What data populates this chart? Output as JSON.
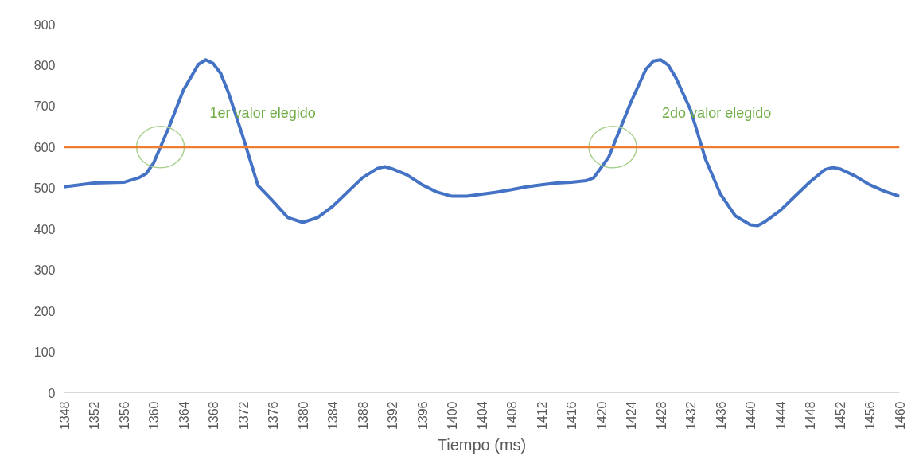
{
  "chart_data": {
    "type": "line",
    "xlabel": "Tiempo (ms)",
    "x": [
      1348,
      1352,
      1356,
      1358,
      1359,
      1360,
      1362,
      1364,
      1366,
      1367,
      1368,
      1369,
      1370,
      1372,
      1374,
      1376,
      1378,
      1380,
      1382,
      1384,
      1386,
      1388,
      1390,
      1391,
      1392,
      1394,
      1396,
      1398,
      1400,
      1402,
      1404,
      1406,
      1408,
      1410,
      1412,
      1414,
      1416,
      1418,
      1419,
      1420,
      1421,
      1422,
      1424,
      1426,
      1427,
      1428,
      1429,
      1430,
      1432,
      1434,
      1436,
      1438,
      1440,
      1441,
      1442,
      1444,
      1446,
      1448,
      1450,
      1451,
      1452,
      1454,
      1456,
      1458,
      1460
    ],
    "series": [
      {
        "color": "#4472c4",
        "values": [
          503,
          512,
          514,
          525,
          535,
          561,
          646,
          739,
          802,
          813,
          804,
          780,
          735,
          624,
          506,
          468,
          428,
          416,
          428,
          455,
          490,
          525,
          548,
          552,
          547,
          532,
          508,
          490,
          480,
          480,
          485,
          490,
          496,
          503,
          508,
          512,
          514,
          518,
          525,
          550,
          575,
          620,
          710,
          790,
          810,
          813,
          800,
          770,
          690,
          570,
          485,
          432,
          410,
          408,
          418,
          445,
          480,
          515,
          545,
          550,
          547,
          530,
          508,
          492,
          480
        ]
      }
    ],
    "xlim": [
      1348,
      1460
    ],
    "xticks": [
      1348,
      1352,
      1356,
      1360,
      1364,
      1368,
      1372,
      1376,
      1380,
      1384,
      1388,
      1392,
      1396,
      1400,
      1404,
      1408,
      1412,
      1416,
      1420,
      1424,
      1428,
      1432,
      1436,
      1440,
      1444,
      1448,
      1452,
      1456,
      1460
    ],
    "ylim": [
      0,
      900
    ],
    "yticks": [
      0,
      100,
      200,
      300,
      400,
      500,
      600,
      700,
      800,
      900
    ],
    "ref_lines": [
      {
        "axis": "y",
        "value": 600,
        "color": "#ed7d31"
      }
    ],
    "annotations": [
      "1er valor elegido",
      "2do valor elegido"
    ],
    "grid": false
  }
}
